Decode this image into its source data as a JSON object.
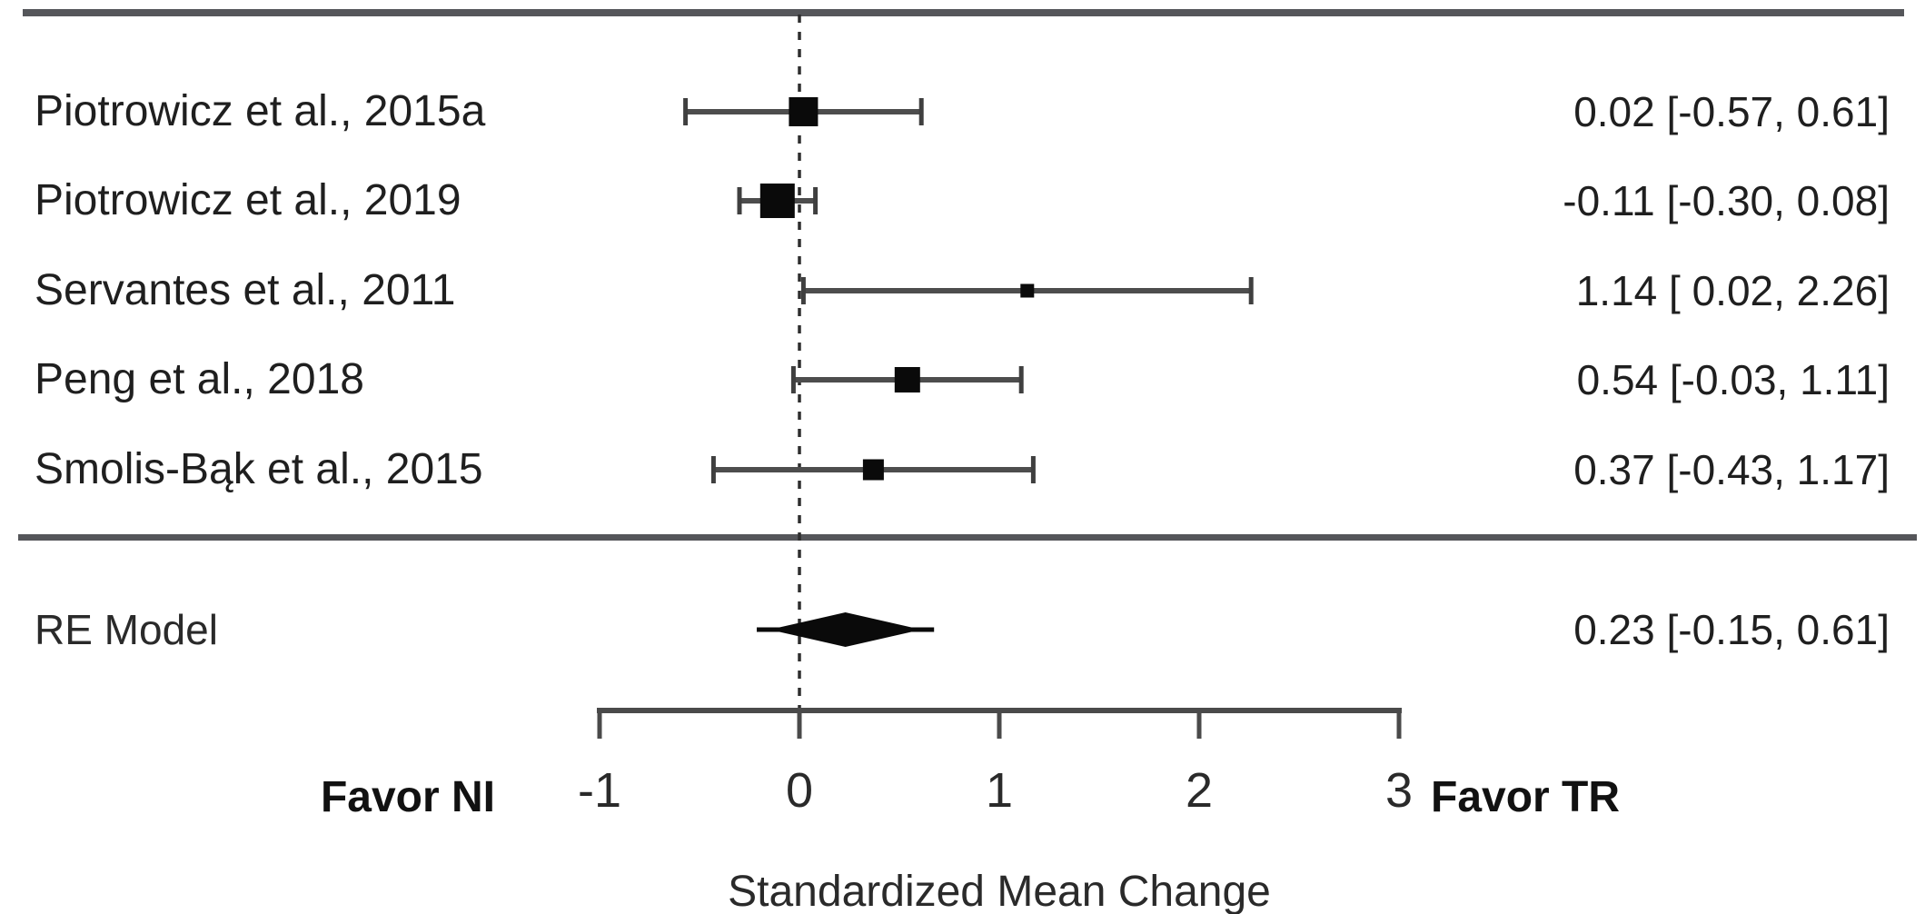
{
  "chart_data": {
    "type": "forest",
    "xlabel": "Standardized Mean Change",
    "xlim": [
      -1,
      3
    ],
    "zero_line": 0,
    "x_ticks": [
      {
        "value": -1,
        "label": "-1"
      },
      {
        "value": 0,
        "label": "0"
      },
      {
        "value": 1,
        "label": "1"
      },
      {
        "value": 2,
        "label": "2"
      },
      {
        "value": 3,
        "label": "3"
      }
    ],
    "studies": [
      {
        "label": "Piotrowicz et al., 2015a",
        "estimate": 0.02,
        "ci_lower": -0.57,
        "ci_upper": 0.61,
        "ci_text": "0.02 [-0.57, 0.61]",
        "marker_size": 32
      },
      {
        "label": "Piotrowicz et al., 2019",
        "estimate": -0.11,
        "ci_lower": -0.3,
        "ci_upper": 0.08,
        "ci_text": "-0.11 [-0.30, 0.08]",
        "marker_size": 38
      },
      {
        "label": "Servantes et al., 2011",
        "estimate": 1.14,
        "ci_lower": 0.02,
        "ci_upper": 2.26,
        "ci_text": "1.14 [ 0.02, 2.26]",
        "marker_size": 15
      },
      {
        "label": "Peng et al., 2018",
        "estimate": 0.54,
        "ci_lower": -0.03,
        "ci_upper": 1.11,
        "ci_text": "0.54 [-0.03, 1.11]",
        "marker_size": 28
      },
      {
        "label": "Smolis-Bąk et al., 2015",
        "estimate": 0.37,
        "ci_lower": -0.43,
        "ci_upper": 1.17,
        "ci_text": "0.37 [-0.43, 1.17]",
        "marker_size": 23
      }
    ],
    "summary": {
      "label": "RE Model",
      "estimate": 0.23,
      "ci_lower": -0.15,
      "ci_upper": 0.61,
      "ci_text": "0.23 [-0.15, 0.61]"
    },
    "favor_left": "Favor NI",
    "favor_right": "Favor TR",
    "colors": {
      "marker": "#0a0a0a",
      "ci_line": "#4d4d4d",
      "cap": "#3f3f3f",
      "zero_line": "#2e2e2e",
      "axis": "#4a4a4a",
      "rule": "#55565a",
      "text": "#1f1f1f"
    },
    "legend": "none",
    "grid": "off"
  }
}
